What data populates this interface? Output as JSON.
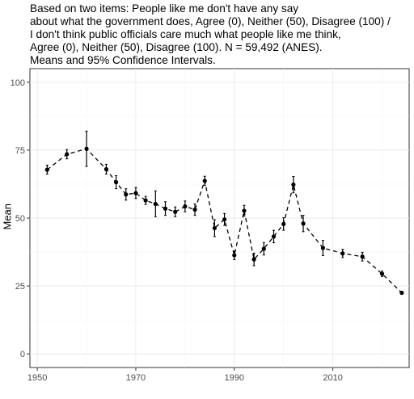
{
  "subtitle": "Based on two items: People like me don't have any say\nabout what the government does, Agree (0), Neither (50), Disagree (100) /\nI don't think public officials care much what people like me think,\nAgree (0), Neither (50), Disagree (100). N = 59,492 (ANES).\nMeans and 95% Confidence Intervals.",
  "chart_data": {
    "type": "line",
    "title": "",
    "xlabel": "",
    "ylabel": "Mean",
    "xlim": [
      1948.5,
      2025.5
    ],
    "ylim": [
      -5,
      105
    ],
    "x_ticks": [
      1950,
      1970,
      1990,
      2010
    ],
    "y_ticks": [
      0,
      25,
      50,
      75,
      100
    ],
    "grid": true,
    "line_style": "dashed",
    "series": [
      {
        "points": [
          {
            "x": 1952,
            "y": 67.8,
            "lo": 66.2,
            "hi": 69.5
          },
          {
            "x": 1956,
            "y": 73.5,
            "lo": 71.8,
            "hi": 75.2
          },
          {
            "x": 1960,
            "y": 75.5,
            "lo": 69.0,
            "hi": 82.0
          },
          {
            "x": 1964,
            "y": 68.0,
            "lo": 66.2,
            "hi": 69.8
          },
          {
            "x": 1966,
            "y": 63.2,
            "lo": 60.8,
            "hi": 65.6
          },
          {
            "x": 1968,
            "y": 58.7,
            "lo": 56.6,
            "hi": 60.8
          },
          {
            "x": 1970,
            "y": 59.2,
            "lo": 57.2,
            "hi": 61.3
          },
          {
            "x": 1972,
            "y": 56.5,
            "lo": 55.0,
            "hi": 58.0
          },
          {
            "x": 1974,
            "y": 55.2,
            "lo": 50.5,
            "hi": 60.0
          },
          {
            "x": 1976,
            "y": 53.5,
            "lo": 51.0,
            "hi": 56.0
          },
          {
            "x": 1978,
            "y": 52.3,
            "lo": 50.5,
            "hi": 54.1
          },
          {
            "x": 1980,
            "y": 54.3,
            "lo": 52.3,
            "hi": 56.3
          },
          {
            "x": 1982,
            "y": 53.1,
            "lo": 51.0,
            "hi": 55.2
          },
          {
            "x": 1984,
            "y": 63.7,
            "lo": 62.0,
            "hi": 65.4
          },
          {
            "x": 1986,
            "y": 46.3,
            "lo": 43.2,
            "hi": 49.4
          },
          {
            "x": 1988,
            "y": 49.5,
            "lo": 47.3,
            "hi": 51.7
          },
          {
            "x": 1990,
            "y": 36.3,
            "lo": 34.7,
            "hi": 37.9
          },
          {
            "x": 1992,
            "y": 52.7,
            "lo": 50.7,
            "hi": 54.7
          },
          {
            "x": 1994,
            "y": 34.8,
            "lo": 32.5,
            "hi": 37.1
          },
          {
            "x": 1996,
            "y": 38.7,
            "lo": 36.4,
            "hi": 41.0
          },
          {
            "x": 1998,
            "y": 43.2,
            "lo": 40.9,
            "hi": 45.5
          },
          {
            "x": 2000,
            "y": 47.8,
            "lo": 45.5,
            "hi": 50.1
          },
          {
            "x": 2002,
            "y": 62.3,
            "lo": 59.3,
            "hi": 65.3
          },
          {
            "x": 2004,
            "y": 48.0,
            "lo": 45.0,
            "hi": 51.0
          },
          {
            "x": 2008,
            "y": 39.0,
            "lo": 36.2,
            "hi": 41.8
          },
          {
            "x": 2012,
            "y": 37.0,
            "lo": 35.5,
            "hi": 38.5
          },
          {
            "x": 2016,
            "y": 35.8,
            "lo": 34.2,
            "hi": 37.4
          },
          {
            "x": 2020,
            "y": 29.5,
            "lo": 28.5,
            "hi": 30.5
          },
          {
            "x": 2024,
            "y": 22.5,
            "lo": 22.0,
            "hi": 23.0
          }
        ]
      }
    ]
  }
}
